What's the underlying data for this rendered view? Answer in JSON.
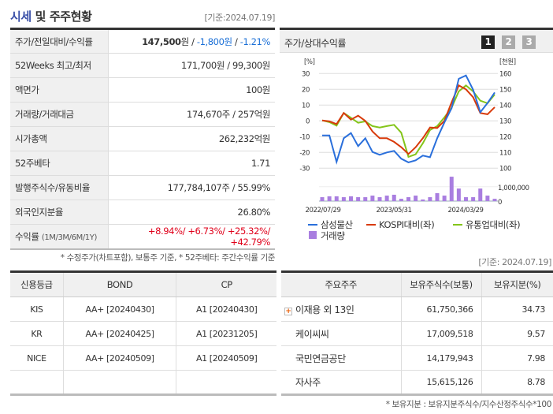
{
  "header": {
    "title_highlight": "시세",
    "title_rest": "및 주주현황",
    "as_of": "[기준:2024.07.19]"
  },
  "info_rows": [
    {
      "label": "주가/전일대비/수익률",
      "price": "147,500",
      "unit": "원",
      "sep": " / ",
      "change": "-1,800원",
      "pct": "-1.21%"
    },
    {
      "label": "52Weeks 최고/최저",
      "value": "171,700원 / 99,300원"
    },
    {
      "label": "액면가",
      "value": "100원"
    },
    {
      "label": "거래량/거래대금",
      "value": "174,670주 / 257억원"
    },
    {
      "label": "시가총액",
      "value": "262,232억원"
    },
    {
      "label": "52주베타",
      "value": "1.71"
    },
    {
      "label": "발행주식수/유동비율",
      "value": "177,784,107주 / 55.99%"
    },
    {
      "label": "외국인지분율",
      "value": "26.80%"
    },
    {
      "label": "수익률",
      "label_sub": "(1M/3M/6M/1Y)",
      "value": "+8.94%/ +6.73%/ +25.32%/ +42.79%"
    }
  ],
  "info_note": "* 수정주가(차트포함), 보통주 기준, * 52주베타: 주간수익률 기준",
  "chart_panel": {
    "title": "주가/상대수익률",
    "buttons": [
      "1",
      "2",
      "3"
    ],
    "active": "1"
  },
  "chart_data": {
    "type": "line",
    "left_unit": "[%]",
    "right_unit": "[천원]",
    "left_ticks": [
      "30",
      "20",
      "10",
      "0",
      "-10",
      "-20",
      "-30"
    ],
    "right_ticks": [
      "160",
      "150",
      "140",
      "130",
      "120",
      "110",
      "100"
    ],
    "volume_tick": "1,000,000",
    "volume_zero": "0",
    "ylim_left": [
      -30,
      30
    ],
    "ylim_right": [
      100,
      160
    ],
    "x_labels": [
      "2022/07/29",
      "2023/05/31",
      "2024/03/29"
    ],
    "grid": true,
    "series": [
      {
        "name": "삼성물산",
        "color": "#2a6fdb",
        "values": [
          -9.2,
          -9.2,
          -26,
          -11,
          -7.7,
          -16,
          -11,
          -19.7,
          -21.5,
          -20,
          -19,
          -24,
          -26.3,
          -25,
          -22,
          -23,
          -11,
          -1,
          8,
          26.7,
          28.8,
          19.7,
          5.5,
          11.3,
          18
        ]
      },
      {
        "name": "KOSPI대비(좌)",
        "color": "#d83a0a",
        "values": [
          0.3,
          -0.3,
          -2,
          5,
          0.8,
          3.3,
          0,
          -6.7,
          -11,
          -11,
          -13.3,
          -16.7,
          -21,
          -16.7,
          -11,
          -4.2,
          -4.5,
          0,
          11.7,
          22.5,
          20,
          15,
          5,
          4.2,
          8.7
        ]
      },
      {
        "name": "유통업대비(좌)",
        "color": "#84c51a",
        "values": [
          0.3,
          -0.8,
          -3,
          5,
          2,
          -1.2,
          -0.3,
          -3.3,
          -4.2,
          -3.3,
          -2.5,
          -7.5,
          -22.8,
          -21.2,
          -14.2,
          -5.8,
          -3.3,
          2.2,
          8.3,
          18.7,
          22.5,
          18.7,
          12.8,
          11.2,
          16.7
        ]
      }
    ],
    "volume": {
      "name": "거래량",
      "color": "#a97ee0",
      "values": [
        270000,
        330000,
        330000,
        270000,
        330000,
        270000,
        270000,
        380000,
        270000,
        380000,
        440000,
        160000,
        270000,
        380000,
        110000,
        270000,
        550000,
        380000,
        1690000,
        870000,
        270000,
        270000,
        870000,
        380000,
        160000
      ]
    }
  },
  "credit": {
    "headers": [
      "신용등급",
      "BOND",
      "CP"
    ],
    "rows": [
      [
        "KIS",
        "AA+  [20240430]",
        "A1  [20240430]"
      ],
      [
        "KR",
        "AA+  [20240425]",
        "A1  [20231205]"
      ],
      [
        "NICE",
        "AA+  [20240509]",
        "A1  [20240509]"
      ],
      [
        "",
        "",
        ""
      ]
    ]
  },
  "holders": {
    "as_of": "[기준: 2024.07.19]",
    "headers": [
      "주요주주",
      "보유주식수(보통)",
      "보유지분(%)"
    ],
    "rows": [
      [
        "이재용 외 13인",
        "61,750,366",
        "34.73"
      ],
      [
        "케이씨씨",
        "17,009,518",
        "9.57"
      ],
      [
        "국민연금공단",
        "14,179,943",
        "7.98"
      ],
      [
        "자사주",
        "15,615,126",
        "8.78"
      ]
    ],
    "note": "* 보유지분 : 보유지분주식수/지수산정주식수*100"
  }
}
